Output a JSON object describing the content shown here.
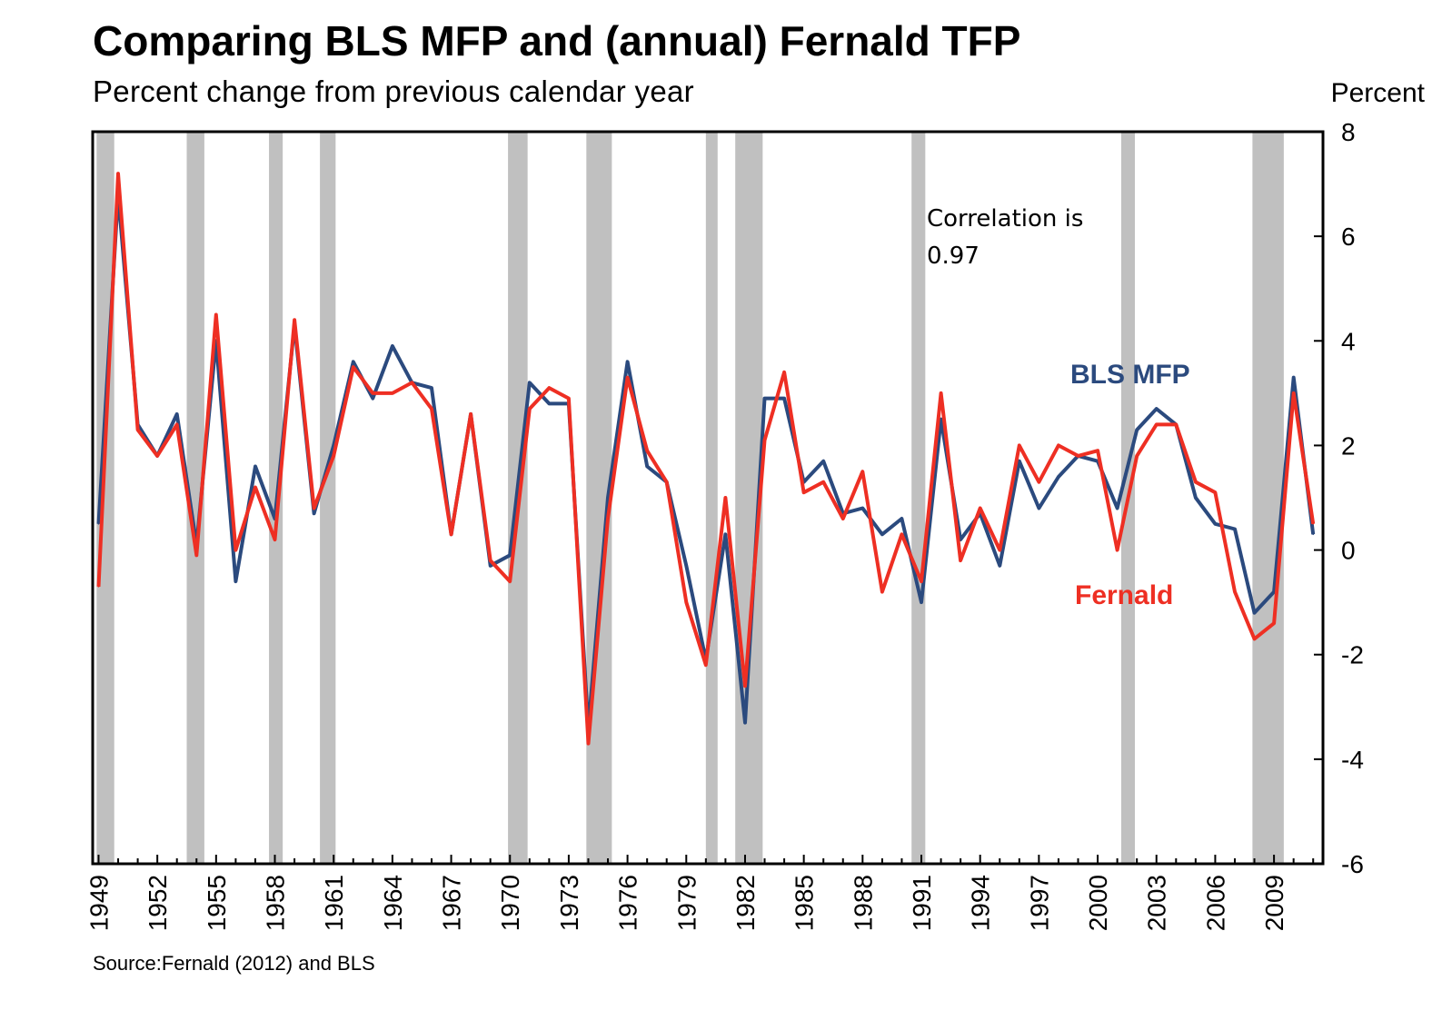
{
  "chart_data": {
    "type": "line",
    "title": "Comparing BLS MFP and (annual) Fernald TFP",
    "subtitle": "Percent change from previous calendar year",
    "ylabel": "Percent",
    "ylim": [
      -6,
      8
    ],
    "yticks": [
      8,
      6,
      4,
      2,
      0,
      -2,
      -4,
      -6
    ],
    "xlim": [
      1949,
      2011
    ],
    "xticks": [
      1949,
      1952,
      1955,
      1958,
      1961,
      1964,
      1967,
      1970,
      1973,
      1976,
      1979,
      1982,
      1985,
      1988,
      1991,
      1994,
      1997,
      2000,
      2003,
      2006,
      2009
    ],
    "x": [
      1949,
      1950,
      1951,
      1952,
      1953,
      1954,
      1955,
      1956,
      1957,
      1958,
      1959,
      1960,
      1961,
      1962,
      1963,
      1964,
      1965,
      1966,
      1967,
      1968,
      1969,
      1970,
      1971,
      1972,
      1973,
      1974,
      1975,
      1976,
      1977,
      1978,
      1979,
      1980,
      1981,
      1982,
      1983,
      1984,
      1985,
      1986,
      1987,
      1988,
      1989,
      1990,
      1991,
      1992,
      1993,
      1994,
      1995,
      1996,
      1997,
      1998,
      1999,
      2000,
      2001,
      2002,
      2003,
      2004,
      2005,
      2006,
      2007,
      2008,
      2009,
      2010,
      2011
    ],
    "series": [
      {
        "name": "BLS MFP",
        "color": "#2b4a7e",
        "values": [
          0.5,
          6.8,
          2.4,
          1.8,
          2.6,
          0.1,
          4.0,
          -0.6,
          1.6,
          0.6,
          4.3,
          0.7,
          2.0,
          3.6,
          2.9,
          3.9,
          3.2,
          3.1,
          0.3,
          2.6,
          -0.3,
          -0.1,
          3.2,
          2.8,
          2.8,
          -3.4,
          1.0,
          3.6,
          1.6,
          1.3,
          -0.3,
          -2.1,
          0.3,
          -3.3,
          2.9,
          2.9,
          1.3,
          1.7,
          0.7,
          0.8,
          0.3,
          0.6,
          -1.0,
          2.5,
          0.2,
          0.7,
          -0.3,
          1.7,
          0.8,
          1.4,
          1.8,
          1.7,
          0.8,
          2.3,
          2.7,
          2.4,
          1.0,
          0.5,
          0.4,
          -1.2,
          -0.8,
          3.3,
          0.3
        ]
      },
      {
        "name": "Fernald",
        "color": "#ee2f23",
        "values": [
          -0.7,
          7.2,
          2.3,
          1.8,
          2.4,
          -0.1,
          4.5,
          0.0,
          1.2,
          0.2,
          4.4,
          0.8,
          1.8,
          3.5,
          3.0,
          3.0,
          3.2,
          2.7,
          0.3,
          2.6,
          -0.2,
          -0.6,
          2.7,
          3.1,
          2.9,
          -3.7,
          0.6,
          3.3,
          1.9,
          1.3,
          -1.0,
          -2.2,
          1.0,
          -2.6,
          2.1,
          3.4,
          1.1,
          1.3,
          0.6,
          1.5,
          -0.8,
          0.3,
          -0.6,
          3.0,
          -0.2,
          0.8,
          0.0,
          2.0,
          1.3,
          2.0,
          1.8,
          1.9,
          0.0,
          1.8,
          2.4,
          2.4,
          1.3,
          1.1,
          -0.8,
          -1.7,
          -1.4,
          3.0,
          0.5
        ]
      }
    ],
    "recession_shading": [
      {
        "start": 1948.9,
        "end": 1949.8
      },
      {
        "start": 1953.5,
        "end": 1954.4
      },
      {
        "start": 1957.7,
        "end": 1958.4
      },
      {
        "start": 1960.3,
        "end": 1961.1
      },
      {
        "start": 1969.9,
        "end": 1970.9
      },
      {
        "start": 1973.9,
        "end": 1975.2
      },
      {
        "start": 1980.0,
        "end": 1980.6
      },
      {
        "start": 1981.5,
        "end": 1982.9
      },
      {
        "start": 1990.5,
        "end": 1991.2
      },
      {
        "start": 2001.2,
        "end": 2001.9
      },
      {
        "start": 2007.9,
        "end": 2009.5
      }
    ],
    "annotation": [
      "Correlation is",
      "0.97"
    ],
    "source": "Source:Fernald (2012) and BLS",
    "grid": false,
    "legend": "inline labels near lines (right side)"
  }
}
